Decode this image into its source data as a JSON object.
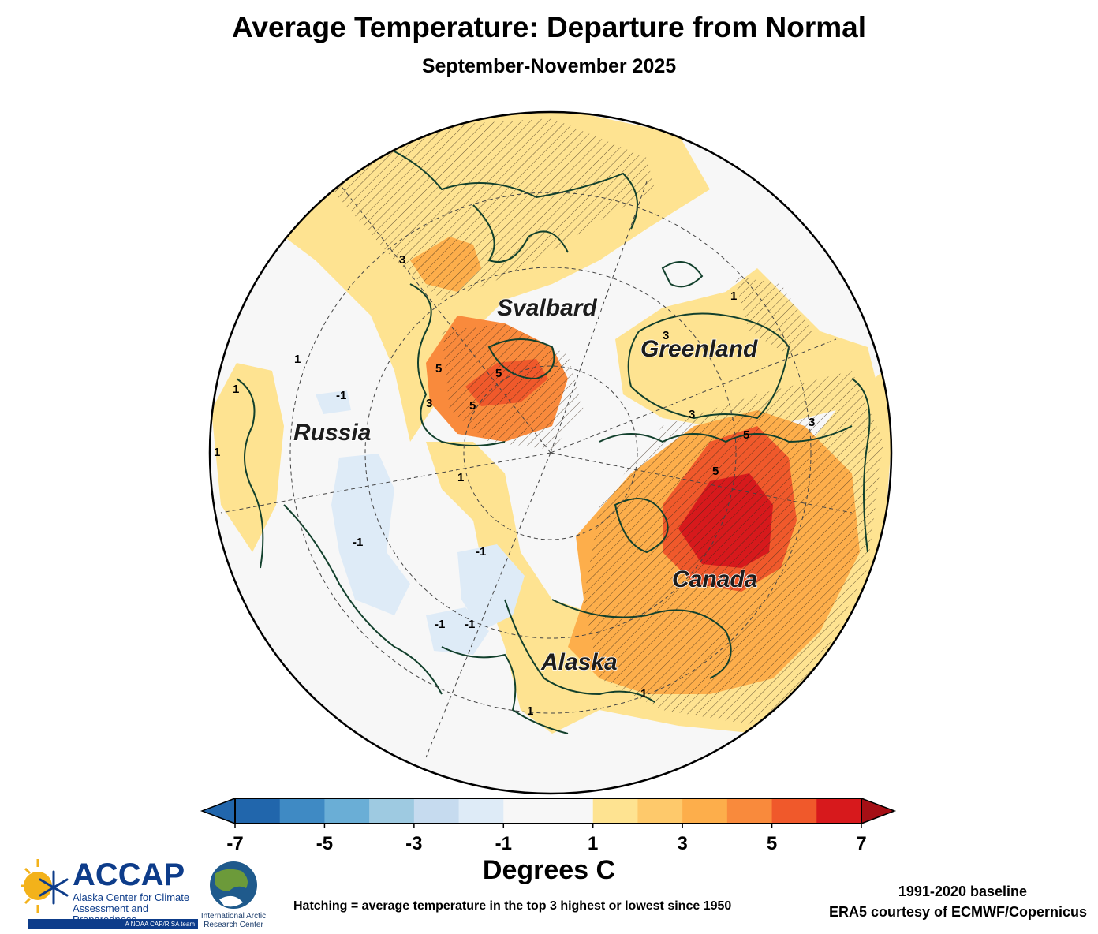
{
  "title": "Average Temperature: Departure from Normal",
  "subtitle": "September-November 2025",
  "map": {
    "labels": {
      "svalbard": "Svalbard",
      "greenland": "Greenland",
      "russia": "Russia",
      "canada": "Canada",
      "alaska": "Alaska"
    },
    "contour_labels": [
      "3",
      "5",
      "5",
      "5",
      "-1",
      "-1",
      "-1",
      "-1",
      "1",
      "1",
      "1",
      "1",
      "3",
      "5",
      "3",
      "5",
      "1",
      "1",
      "-1",
      "3",
      "1",
      "3"
    ]
  },
  "colorbar": {
    "ticks": [
      "-7",
      "-5",
      "-3",
      "-1",
      "1",
      "3",
      "5",
      "7"
    ],
    "colors": [
      "#2166ac",
      "#3f8ac4",
      "#6aaed6",
      "#9ecae1",
      "#c6dbef",
      "#deebf7",
      "#f7f7f7",
      "#f7f7f7",
      "#fee391",
      "#fec96b",
      "#fdae4b",
      "#f98a3c",
      "#f0592b",
      "#d7191c"
    ],
    "low_arrow_color": "#2166ac",
    "high_arrow_color": "#a50f15",
    "units": "Degrees C"
  },
  "notes": {
    "hatching": "Hatching = average temperature in the top 3 highest or lowest since 1950",
    "baseline": "1991-2020 baseline",
    "source": "ERA5 courtesy of ECMWF/Copernicus"
  },
  "logos": {
    "accap_name": "ACCAP",
    "accap_line1": "Alaska Center for Climate",
    "accap_line2": "Assessment and Preparedness",
    "accap_tag": "A NOAA CAP/RISA team",
    "iarc_line1": "International Arctic",
    "iarc_line2": "Research Center"
  }
}
